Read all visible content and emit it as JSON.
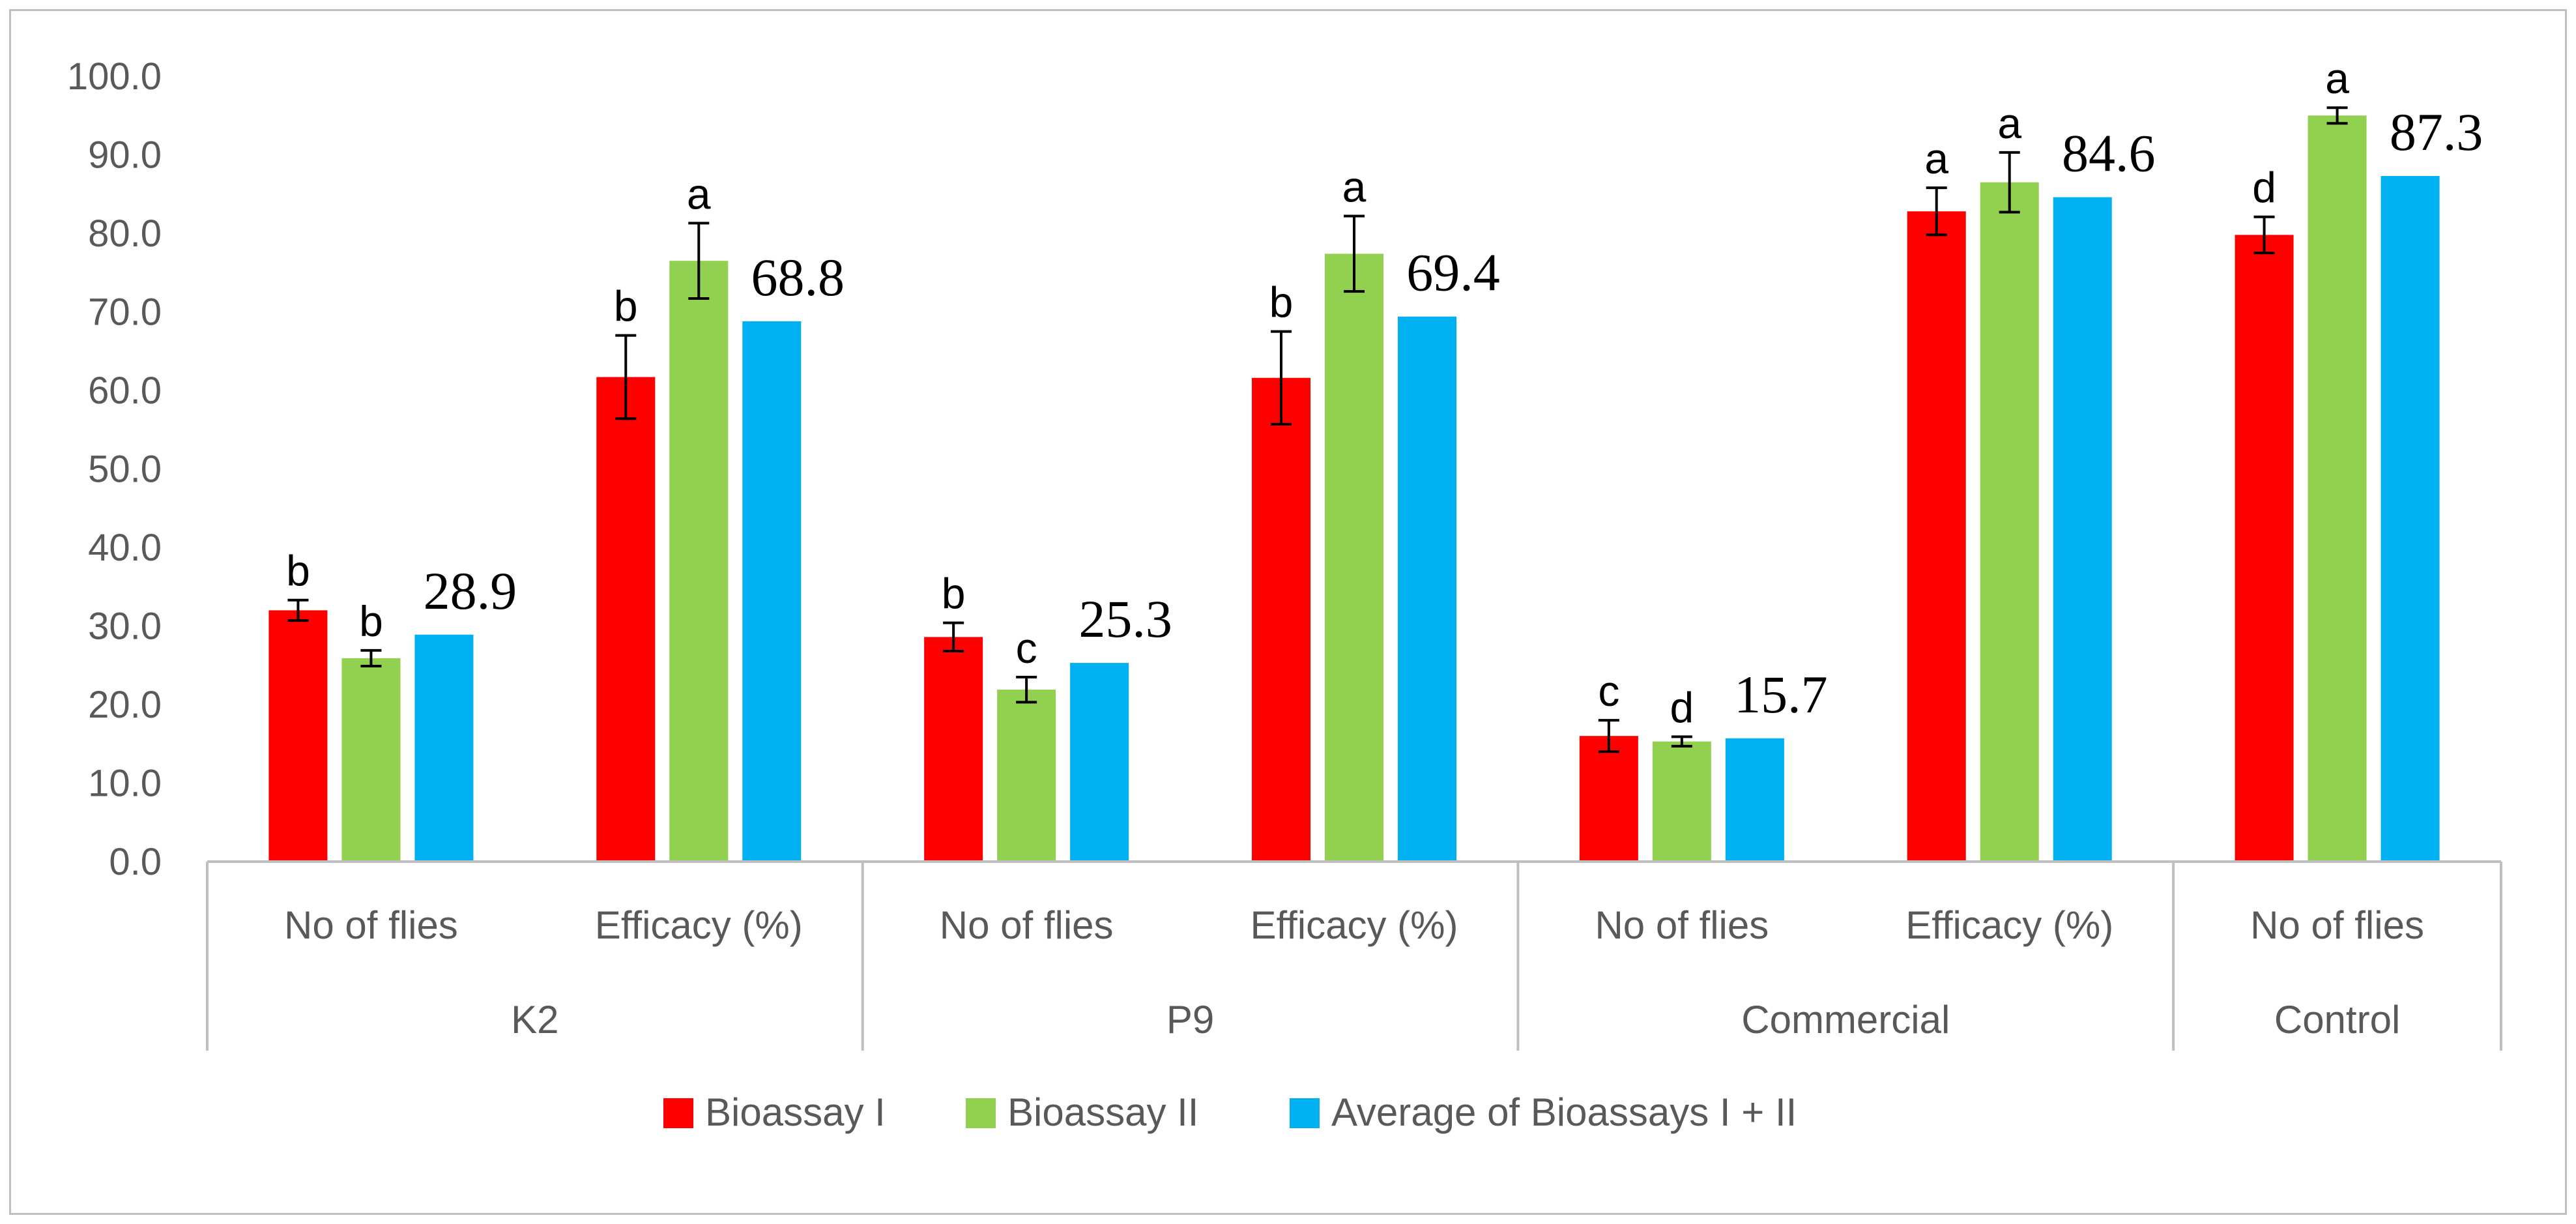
{
  "chart_data": {
    "type": "bar",
    "title": "",
    "xlabel": "",
    "ylabel": "",
    "ylim": [
      0,
      100
    ],
    "ytick_step": 10,
    "ytick_labels": [
      "0.0",
      "10.0",
      "20.0",
      "30.0",
      "40.0",
      "50.0",
      "60.0",
      "70.0",
      "80.0",
      "90.0",
      "100.0"
    ],
    "grid": false,
    "legend_position": "bottom",
    "groups": [
      {
        "label": "K2",
        "categories": [
          "No of flies",
          "Efficacy (%)"
        ]
      },
      {
        "label": "P9",
        "categories": [
          "No of flies",
          "Efficacy (%)"
        ]
      },
      {
        "label": "Commercial",
        "categories": [
          "No of flies",
          "Efficacy (%)"
        ]
      },
      {
        "label": "Control",
        "categories": [
          "No of flies"
        ]
      }
    ],
    "categories": [
      "No of flies",
      "Efficacy (%)",
      "No of flies",
      "Efficacy (%)",
      "No of flies",
      "Efficacy (%)",
      "No of flies"
    ],
    "series": [
      {
        "name": "Bioassay I",
        "color": "#ff0000",
        "values": [
          32.0,
          61.7,
          28.6,
          61.6,
          16.0,
          82.8,
          79.8
        ],
        "errors": [
          1.3,
          5.3,
          1.8,
          5.9,
          2.0,
          3.0,
          2.3
        ],
        "letters": [
          "b",
          "b",
          "b",
          "b",
          "c",
          "a",
          "d"
        ]
      },
      {
        "name": "Bioassay II",
        "color": "#92d050",
        "values": [
          25.9,
          76.5,
          21.9,
          77.4,
          15.3,
          86.5,
          95.0
        ],
        "errors": [
          1.0,
          4.8,
          1.6,
          4.8,
          0.6,
          3.8,
          1.0
        ],
        "letters": [
          "b",
          "a",
          "c",
          "a",
          "d",
          "a",
          "a"
        ]
      },
      {
        "name": "Average of Bioassays I + II",
        "color": "#00b0f0",
        "values": [
          28.9,
          68.8,
          25.3,
          69.4,
          15.7,
          84.6,
          87.3
        ],
        "labels": [
          "28.9",
          "68.8",
          "25.3",
          "69.4",
          "15.7",
          "84.6",
          "87.3"
        ],
        "label_shown": [
          true,
          true,
          true,
          true,
          true,
          true,
          true
        ]
      }
    ]
  }
}
